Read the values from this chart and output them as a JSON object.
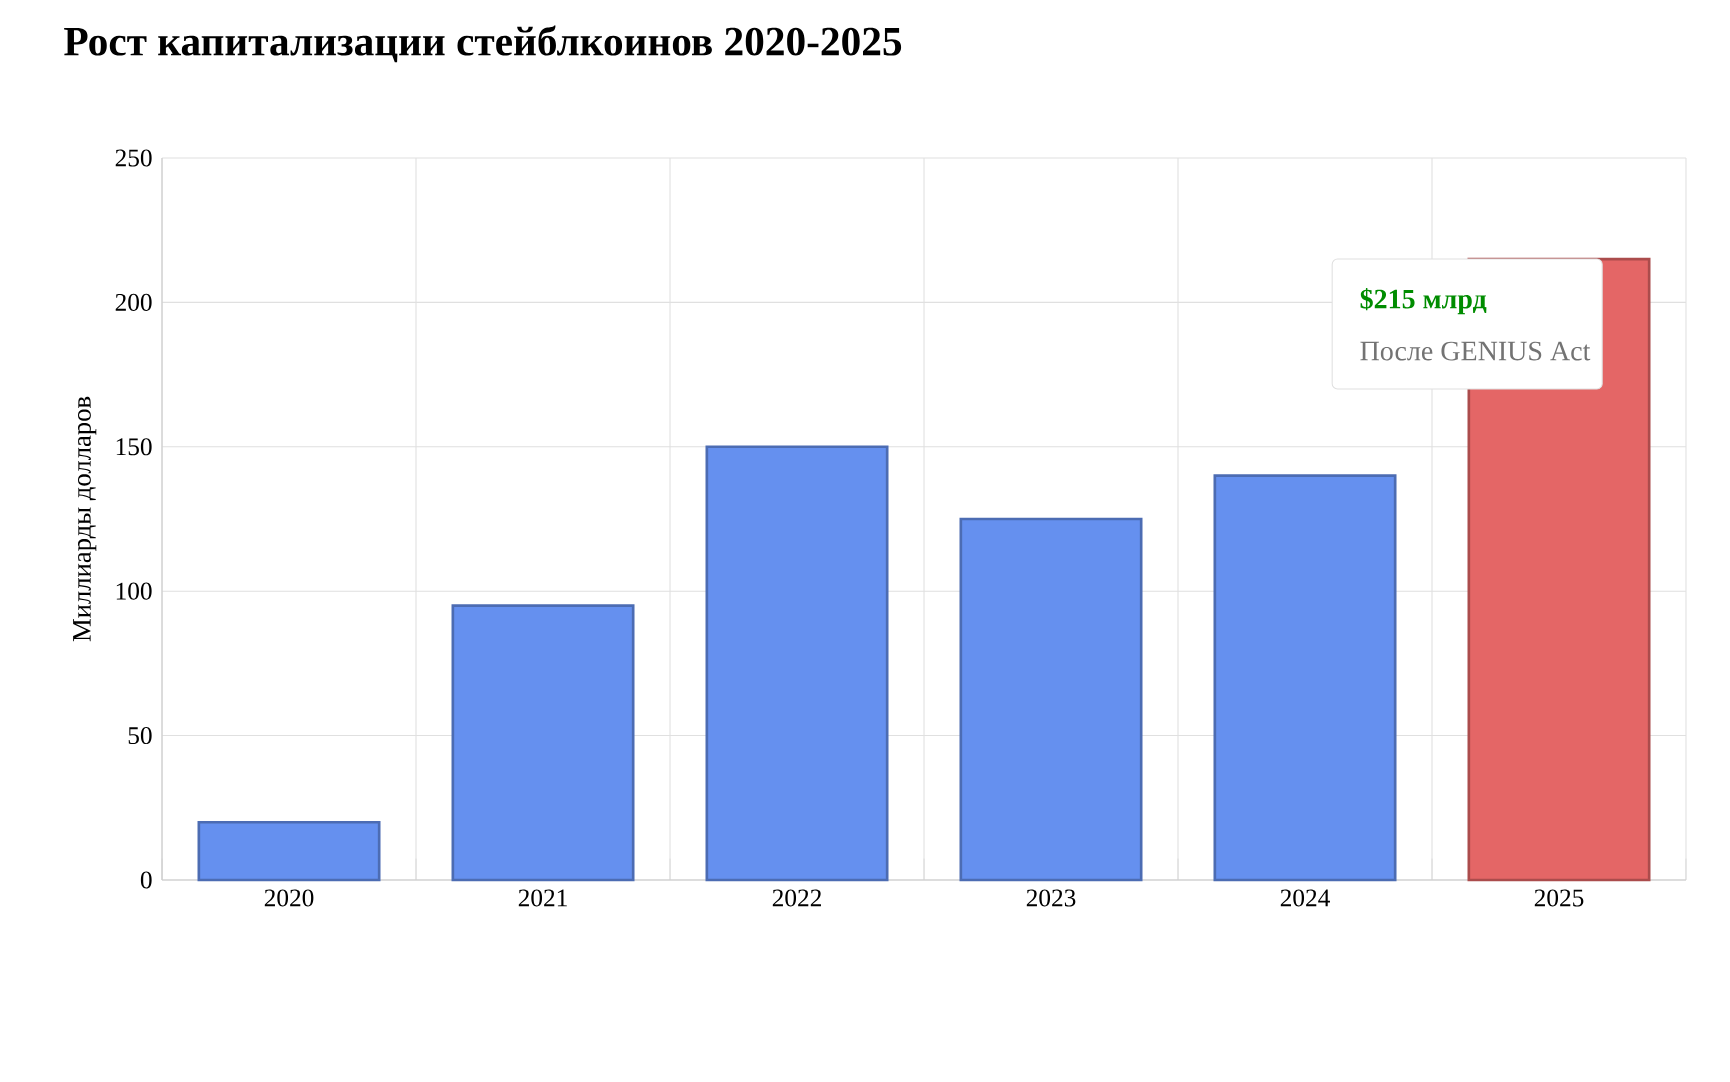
{
  "chart_data": {
    "type": "bar",
    "title": "Рост капитализации стейблкоинов 2020-2025",
    "ylabel": "Миллиарды долларов",
    "categories": [
      "2020",
      "2021",
      "2022",
      "2023",
      "2024",
      "2025"
    ],
    "values": [
      20,
      95,
      150,
      125,
      140,
      215
    ],
    "colors": [
      "#6590ef",
      "#6590ef",
      "#6590ef",
      "#6590ef",
      "#6590ef",
      "#e46666"
    ],
    "ylim": [
      0,
      250
    ],
    "yticks": [
      0,
      50,
      100,
      150,
      200,
      250
    ],
    "grid": true,
    "annotations": [
      {
        "text": "$215 млрд",
        "x": "2025",
        "y": 215
      },
      {
        "text": "После GENIUS Act",
        "x": "2025",
        "y": 215
      }
    ]
  }
}
